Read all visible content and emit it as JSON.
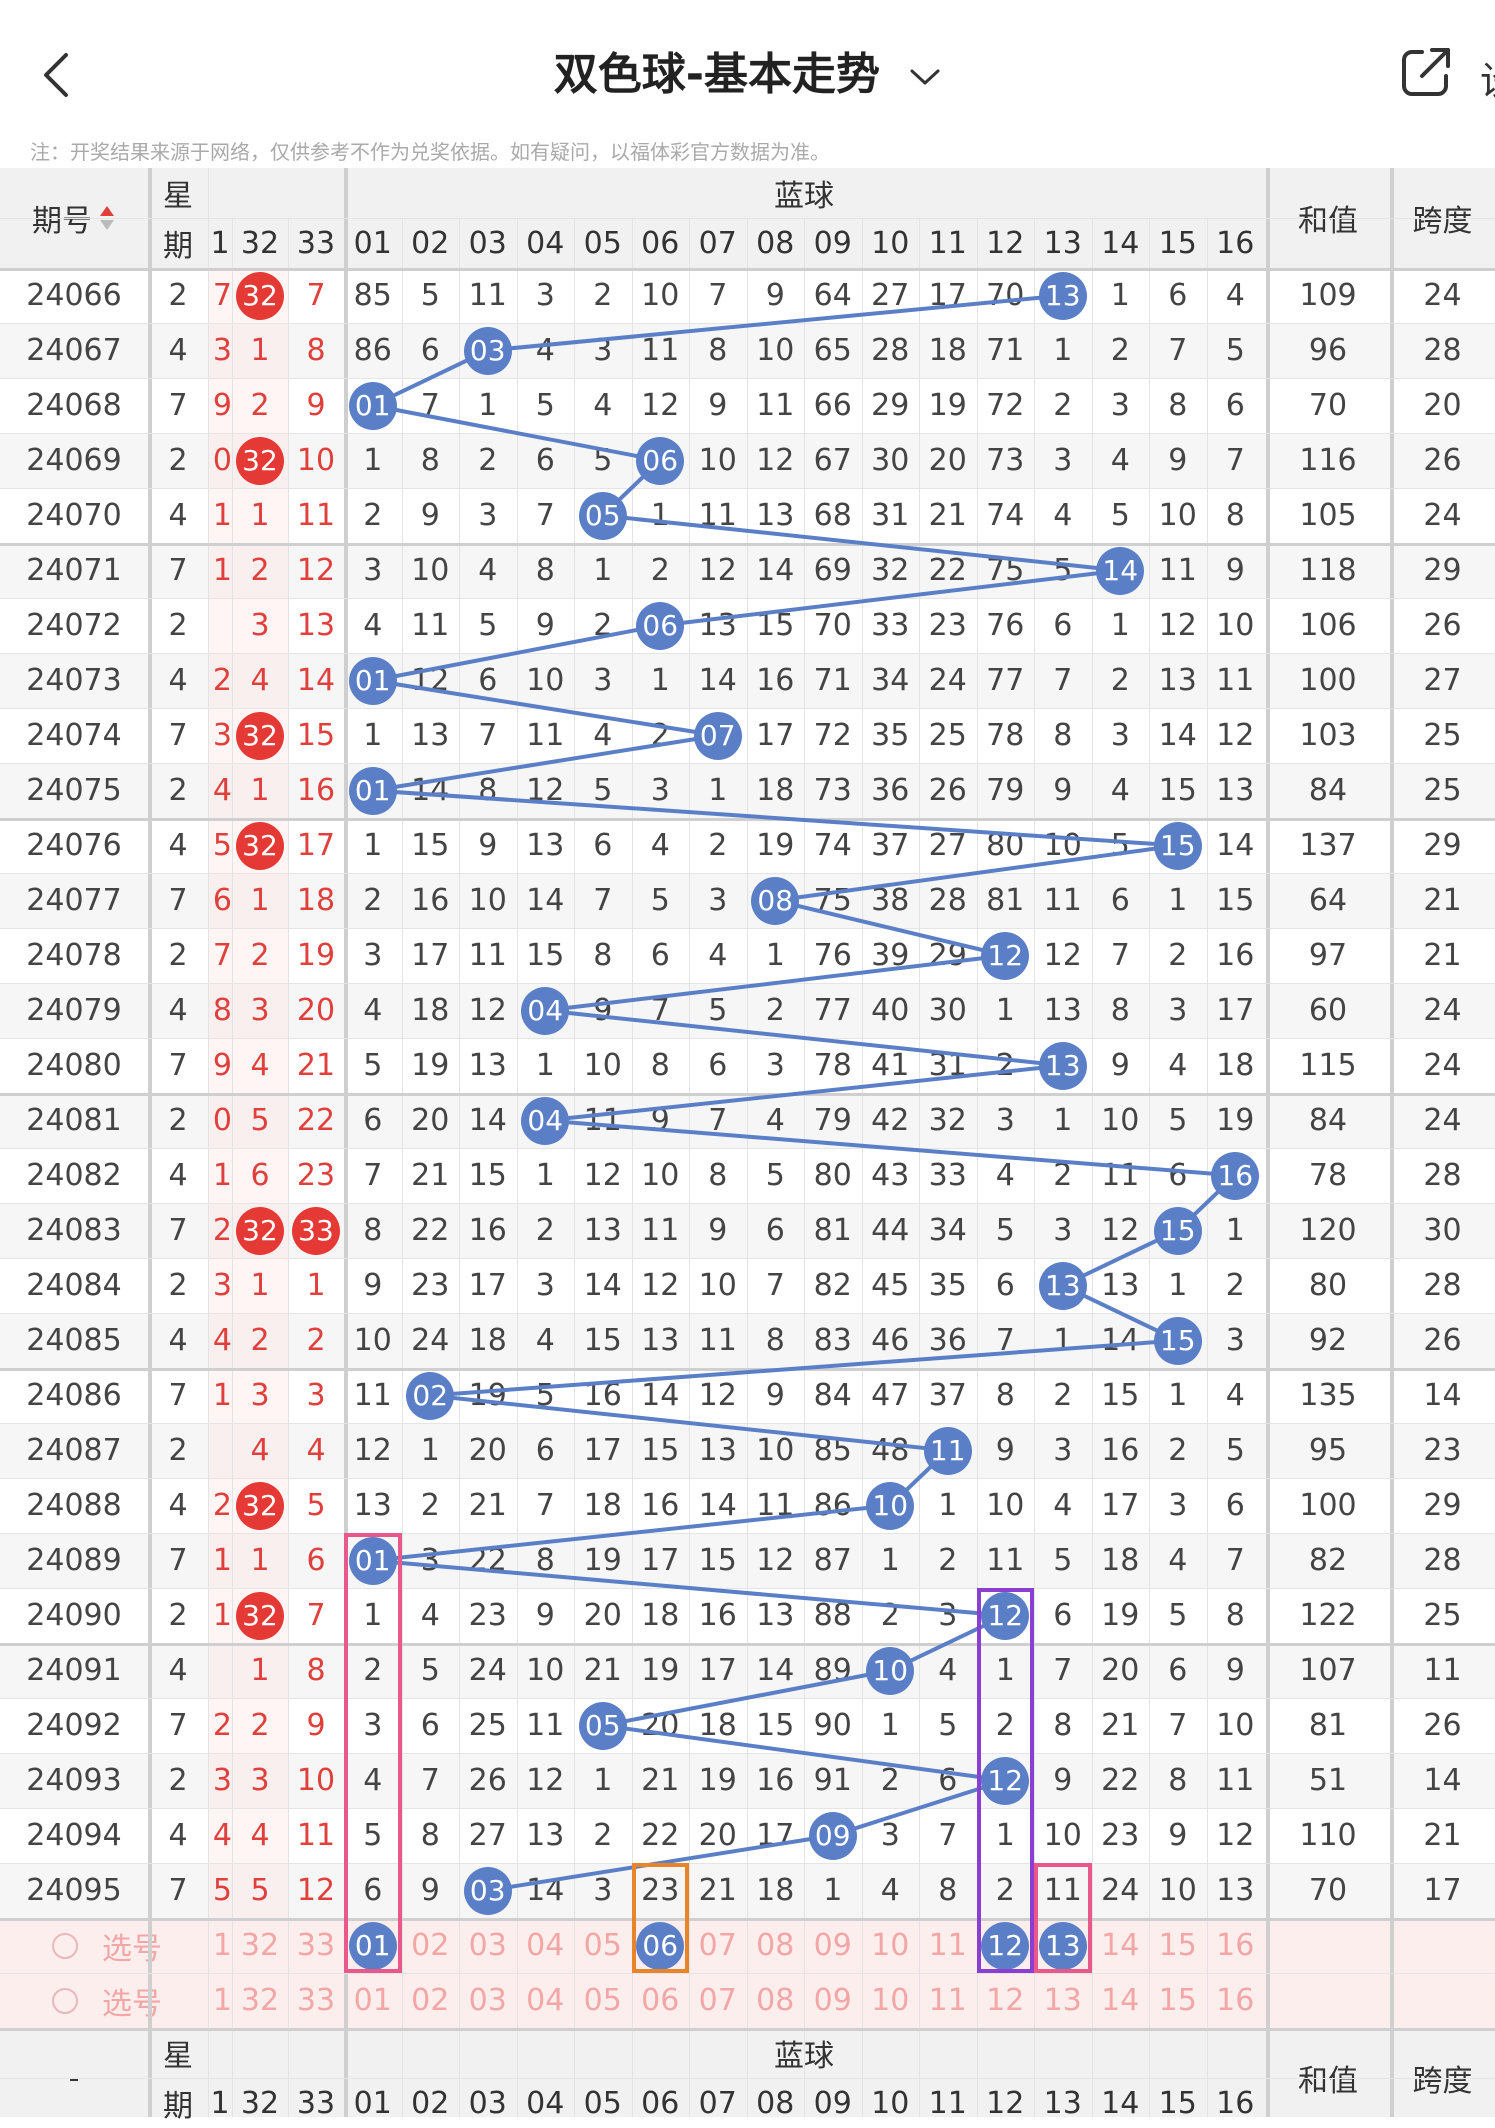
{
  "header": {
    "title": "双色球-基本走势",
    "back_icon": "chevron-left-icon",
    "share_icon": "share-icon",
    "right_text": "设",
    "notice": "注：开奖结果来源于网络，仅供参考不作为兑奖依据。如有疑问，以福体彩官方数据为准。"
  },
  "table": {
    "col_period": "期号",
    "col_week_1": "星",
    "col_week_2": "期",
    "blue_group": "蓝球",
    "col_sum": "和值",
    "col_span": "跨度",
    "footer_dash": "-",
    "red_partial_header": "1",
    "red_headers": [
      "32",
      "33"
    ],
    "blue_headers": [
      "01",
      "02",
      "03",
      "04",
      "05",
      "06",
      "07",
      "08",
      "09",
      "10",
      "11",
      "12",
      "13",
      "14",
      "15",
      "16"
    ],
    "rows": [
      {
        "period": "24066",
        "week": "2",
        "p": "7",
        "r32": "32",
        "r33": "7",
        "b": [
          "85",
          "5",
          "11",
          "3",
          "2",
          "10",
          "7",
          "9",
          "64",
          "27",
          "17",
          "70",
          "13",
          "1",
          "6",
          "4"
        ],
        "sum": "109",
        "span": "24",
        "hit": 13,
        "r32hit": true,
        "r33hit": false
      },
      {
        "period": "24067",
        "week": "4",
        "p": "3",
        "r32": "1",
        "r33": "8",
        "b": [
          "86",
          "6",
          "03",
          "4",
          "3",
          "11",
          "8",
          "10",
          "65",
          "28",
          "18",
          "71",
          "1",
          "2",
          "7",
          "5"
        ],
        "sum": "96",
        "span": "28",
        "hit": 3,
        "r32hit": false,
        "r33hit": false
      },
      {
        "period": "24068",
        "week": "7",
        "p": "9",
        "r32": "2",
        "r33": "9",
        "b": [
          "01",
          "7",
          "1",
          "5",
          "4",
          "12",
          "9",
          "11",
          "66",
          "29",
          "19",
          "72",
          "2",
          "3",
          "8",
          "6"
        ],
        "sum": "70",
        "span": "20",
        "hit": 1,
        "r32hit": false,
        "r33hit": false
      },
      {
        "period": "24069",
        "week": "2",
        "p": "0",
        "r32": "32",
        "r33": "10",
        "b": [
          "1",
          "8",
          "2",
          "6",
          "5",
          "06",
          "10",
          "12",
          "67",
          "30",
          "20",
          "73",
          "3",
          "4",
          "9",
          "7"
        ],
        "sum": "116",
        "span": "26",
        "hit": 6,
        "r32hit": true,
        "r33hit": false
      },
      {
        "period": "24070",
        "week": "4",
        "p": "1",
        "r32": "1",
        "r33": "11",
        "b": [
          "2",
          "9",
          "3",
          "7",
          "05",
          "1",
          "11",
          "13",
          "68",
          "31",
          "21",
          "74",
          "4",
          "5",
          "10",
          "8"
        ],
        "sum": "105",
        "span": "24",
        "hit": 5,
        "r32hit": false,
        "r33hit": false
      },
      {
        "period": "24071",
        "week": "7",
        "p": "1",
        "r32": "2",
        "r33": "12",
        "b": [
          "3",
          "10",
          "4",
          "8",
          "1",
          "2",
          "12",
          "14",
          "69",
          "32",
          "22",
          "75",
          "5",
          "14",
          "11",
          "9"
        ],
        "sum": "118",
        "span": "29",
        "hit": 14,
        "r32hit": false,
        "r33hit": false
      },
      {
        "period": "24072",
        "week": "2",
        "p": "",
        "r32": "3",
        "r33": "13",
        "b": [
          "4",
          "11",
          "5",
          "9",
          "2",
          "06",
          "13",
          "15",
          "70",
          "33",
          "23",
          "76",
          "6",
          "1",
          "12",
          "10"
        ],
        "sum": "106",
        "span": "26",
        "hit": 6,
        "r32hit": false,
        "r33hit": false
      },
      {
        "period": "24073",
        "week": "4",
        "p": "2",
        "r32": "4",
        "r33": "14",
        "b": [
          "01",
          "12",
          "6",
          "10",
          "3",
          "1",
          "14",
          "16",
          "71",
          "34",
          "24",
          "77",
          "7",
          "2",
          "13",
          "11"
        ],
        "sum": "100",
        "span": "27",
        "hit": 1,
        "r32hit": false,
        "r33hit": false
      },
      {
        "period": "24074",
        "week": "7",
        "p": "3",
        "r32": "32",
        "r33": "15",
        "b": [
          "1",
          "13",
          "7",
          "11",
          "4",
          "2",
          "07",
          "17",
          "72",
          "35",
          "25",
          "78",
          "8",
          "3",
          "14",
          "12"
        ],
        "sum": "103",
        "span": "25",
        "hit": 7,
        "r32hit": true,
        "r33hit": false
      },
      {
        "period": "24075",
        "week": "2",
        "p": "4",
        "r32": "1",
        "r33": "16",
        "b": [
          "01",
          "14",
          "8",
          "12",
          "5",
          "3",
          "1",
          "18",
          "73",
          "36",
          "26",
          "79",
          "9",
          "4",
          "15",
          "13"
        ],
        "sum": "84",
        "span": "25",
        "hit": 1,
        "r32hit": false,
        "r33hit": false
      },
      {
        "period": "24076",
        "week": "4",
        "p": "5",
        "r32": "32",
        "r33": "17",
        "b": [
          "1",
          "15",
          "9",
          "13",
          "6",
          "4",
          "2",
          "19",
          "74",
          "37",
          "27",
          "80",
          "10",
          "5",
          "15",
          "14"
        ],
        "sum": "137",
        "span": "29",
        "hit": 15,
        "r32hit": true,
        "r33hit": false
      },
      {
        "period": "24077",
        "week": "7",
        "p": "6",
        "r32": "1",
        "r33": "18",
        "b": [
          "2",
          "16",
          "10",
          "14",
          "7",
          "5",
          "3",
          "08",
          "75",
          "38",
          "28",
          "81",
          "11",
          "6",
          "1",
          "15"
        ],
        "sum": "64",
        "span": "21",
        "hit": 8,
        "r32hit": false,
        "r33hit": false
      },
      {
        "period": "24078",
        "week": "2",
        "p": "7",
        "r32": "2",
        "r33": "19",
        "b": [
          "3",
          "17",
          "11",
          "15",
          "8",
          "6",
          "4",
          "1",
          "76",
          "39",
          "29",
          "12",
          "12",
          "7",
          "2",
          "16"
        ],
        "sum": "97",
        "span": "21",
        "hit": 12,
        "r32hit": false,
        "r33hit": false
      },
      {
        "period": "24079",
        "week": "4",
        "p": "8",
        "r32": "3",
        "r33": "20",
        "b": [
          "4",
          "18",
          "12",
          "04",
          "9",
          "7",
          "5",
          "2",
          "77",
          "40",
          "30",
          "1",
          "13",
          "8",
          "3",
          "17"
        ],
        "sum": "60",
        "span": "24",
        "hit": 4,
        "r32hit": false,
        "r33hit": false
      },
      {
        "period": "24080",
        "week": "7",
        "p": "9",
        "r32": "4",
        "r33": "21",
        "b": [
          "5",
          "19",
          "13",
          "1",
          "10",
          "8",
          "6",
          "3",
          "78",
          "41",
          "31",
          "2",
          "13",
          "9",
          "4",
          "18"
        ],
        "sum": "115",
        "span": "24",
        "hit": 13,
        "r32hit": false,
        "r33hit": false
      },
      {
        "period": "24081",
        "week": "2",
        "p": "0",
        "r32": "5",
        "r33": "22",
        "b": [
          "6",
          "20",
          "14",
          "04",
          "11",
          "9",
          "7",
          "4",
          "79",
          "42",
          "32",
          "3",
          "1",
          "10",
          "5",
          "19"
        ],
        "sum": "84",
        "span": "24",
        "hit": 4,
        "r32hit": false,
        "r33hit": false
      },
      {
        "period": "24082",
        "week": "4",
        "p": "1",
        "r32": "6",
        "r33": "23",
        "b": [
          "7",
          "21",
          "15",
          "1",
          "12",
          "10",
          "8",
          "5",
          "80",
          "43",
          "33",
          "4",
          "2",
          "11",
          "6",
          "16"
        ],
        "sum": "78",
        "span": "28",
        "hit": 16,
        "r32hit": false,
        "r33hit": false
      },
      {
        "period": "24083",
        "week": "7",
        "p": "2",
        "r32": "32",
        "r33": "33",
        "b": [
          "8",
          "22",
          "16",
          "2",
          "13",
          "11",
          "9",
          "6",
          "81",
          "44",
          "34",
          "5",
          "3",
          "12",
          "15",
          "1"
        ],
        "sum": "120",
        "span": "30",
        "hit": 15,
        "r32hit": true,
        "r33hit": true
      },
      {
        "period": "24084",
        "week": "2",
        "p": "3",
        "r32": "1",
        "r33": "1",
        "b": [
          "9",
          "23",
          "17",
          "3",
          "14",
          "12",
          "10",
          "7",
          "82",
          "45",
          "35",
          "6",
          "13",
          "13",
          "1",
          "2"
        ],
        "sum": "80",
        "span": "28",
        "hit": 13,
        "r32hit": false,
        "r33hit": false
      },
      {
        "period": "24085",
        "week": "4",
        "p": "4",
        "r32": "2",
        "r33": "2",
        "b": [
          "10",
          "24",
          "18",
          "4",
          "15",
          "13",
          "11",
          "8",
          "83",
          "46",
          "36",
          "7",
          "1",
          "14",
          "15",
          "3"
        ],
        "sum": "92",
        "span": "26",
        "hit": 15,
        "r32hit": false,
        "r33hit": false
      },
      {
        "period": "24086",
        "week": "7",
        "p": "1",
        "r32": "3",
        "r33": "3",
        "b": [
          "11",
          "02",
          "19",
          "5",
          "16",
          "14",
          "12",
          "9",
          "84",
          "47",
          "37",
          "8",
          "2",
          "15",
          "1",
          "4"
        ],
        "sum": "135",
        "span": "14",
        "hit": 2,
        "r32hit": false,
        "r33hit": false
      },
      {
        "period": "24087",
        "week": "2",
        "p": "",
        "r32": "4",
        "r33": "4",
        "b": [
          "12",
          "1",
          "20",
          "6",
          "17",
          "15",
          "13",
          "10",
          "85",
          "48",
          "11",
          "9",
          "3",
          "16",
          "2",
          "5"
        ],
        "sum": "95",
        "span": "23",
        "hit": 11,
        "r32hit": false,
        "r33hit": false
      },
      {
        "period": "24088",
        "week": "4",
        "p": "2",
        "r32": "32",
        "r33": "5",
        "b": [
          "13",
          "2",
          "21",
          "7",
          "18",
          "16",
          "14",
          "11",
          "86",
          "10",
          "1",
          "10",
          "4",
          "17",
          "3",
          "6"
        ],
        "sum": "100",
        "span": "29",
        "hit": 10,
        "r32hit": true,
        "r33hit": false
      },
      {
        "period": "24089",
        "week": "7",
        "p": "1",
        "r32": "1",
        "r33": "6",
        "b": [
          "01",
          "3",
          "22",
          "8",
          "19",
          "17",
          "15",
          "12",
          "87",
          "1",
          "2",
          "11",
          "5",
          "18",
          "4",
          "7"
        ],
        "sum": "82",
        "span": "28",
        "hit": 1,
        "r32hit": false,
        "r33hit": false
      },
      {
        "period": "24090",
        "week": "2",
        "p": "1",
        "r32": "32",
        "r33": "7",
        "b": [
          "1",
          "4",
          "23",
          "9",
          "20",
          "18",
          "16",
          "13",
          "88",
          "2",
          "3",
          "12",
          "6",
          "19",
          "5",
          "8"
        ],
        "sum": "122",
        "span": "25",
        "hit": 12,
        "r32hit": true,
        "r33hit": false
      },
      {
        "period": "24091",
        "week": "4",
        "p": "",
        "r32": "1",
        "r33": "8",
        "b": [
          "2",
          "5",
          "24",
          "10",
          "21",
          "19",
          "17",
          "14",
          "89",
          "10",
          "4",
          "1",
          "7",
          "20",
          "6",
          "9"
        ],
        "sum": "107",
        "span": "11",
        "hit": 10,
        "r32hit": false,
        "r33hit": false
      },
      {
        "period": "24092",
        "week": "7",
        "p": "2",
        "r32": "2",
        "r33": "9",
        "b": [
          "3",
          "6",
          "25",
          "11",
          "05",
          "20",
          "18",
          "15",
          "90",
          "1",
          "5",
          "2",
          "8",
          "21",
          "7",
          "10"
        ],
        "sum": "81",
        "span": "26",
        "hit": 5,
        "r32hit": false,
        "r33hit": false
      },
      {
        "period": "24093",
        "week": "2",
        "p": "3",
        "r32": "3",
        "r33": "10",
        "b": [
          "4",
          "7",
          "26",
          "12",
          "1",
          "21",
          "19",
          "16",
          "91",
          "2",
          "6",
          "12",
          "9",
          "22",
          "8",
          "11"
        ],
        "sum": "51",
        "span": "14",
        "hit": 12,
        "r32hit": false,
        "r33hit": false
      },
      {
        "period": "24094",
        "week": "4",
        "p": "4",
        "r32": "4",
        "r33": "11",
        "b": [
          "5",
          "8",
          "27",
          "13",
          "2",
          "22",
          "20",
          "17",
          "09",
          "3",
          "7",
          "1",
          "10",
          "23",
          "9",
          "12"
        ],
        "sum": "110",
        "span": "21",
        "hit": 9,
        "r32hit": false,
        "r33hit": false
      },
      {
        "period": "24095",
        "week": "7",
        "p": "5",
        "r32": "5",
        "r33": "12",
        "b": [
          "6",
          "9",
          "03",
          "14",
          "3",
          "23",
          "21",
          "18",
          "1",
          "4",
          "8",
          "2",
          "11",
          "24",
          "10",
          "13"
        ],
        "sum": "70",
        "span": "17",
        "hit": 3,
        "r32hit": false,
        "r33hit": false
      }
    ],
    "select_rows": [
      {
        "label": "选号",
        "red": [
          "1",
          "32",
          "33"
        ],
        "blue": [
          "01",
          "02",
          "03",
          "04",
          "05",
          "06",
          "07",
          "08",
          "09",
          "10",
          "11",
          "12",
          "13",
          "14",
          "15",
          "16"
        ],
        "selected": [
          1,
          6,
          12,
          13
        ]
      },
      {
        "label": "选号",
        "red": [
          "1",
          "32",
          "33"
        ],
        "blue": [
          "01",
          "02",
          "03",
          "04",
          "05",
          "06",
          "07",
          "08",
          "09",
          "10",
          "11",
          "12",
          "13",
          "14",
          "15",
          "16"
        ],
        "selected": []
      }
    ],
    "colors": {
      "red_ball": "#e53935",
      "blue_ball": "#5b7fc7",
      "box_pink": "#e8588a",
      "box_purple": "#8b3fd1",
      "box_orange": "#e8852a"
    }
  }
}
